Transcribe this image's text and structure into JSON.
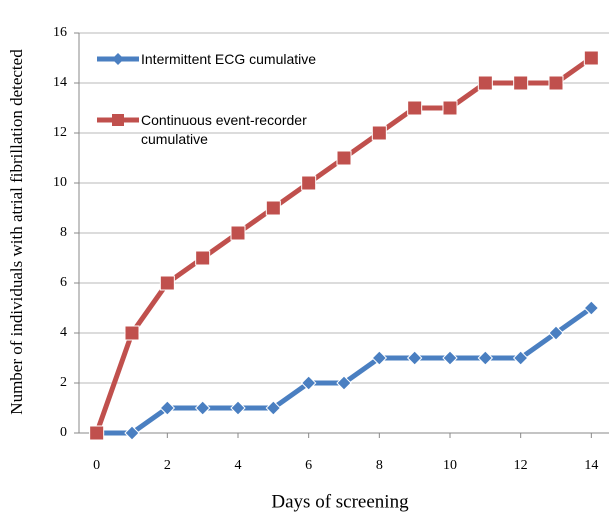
{
  "chart_data": {
    "type": "line",
    "x_label": "Days of screening",
    "y_label": "Number of individuals with atrial fibrillation detected",
    "x": [
      0,
      1,
      2,
      3,
      4,
      5,
      6,
      7,
      8,
      9,
      10,
      11,
      12,
      13,
      14
    ],
    "series": [
      {
        "name": "Intermittent ECG cumulative",
        "color": "#4a7fc1",
        "marker": "diamond",
        "values": [
          0,
          0,
          1,
          1,
          1,
          1,
          2,
          2,
          3,
          3,
          3,
          3,
          3,
          4,
          5
        ]
      },
      {
        "name": "Continuous event-recorder cumulative",
        "color": "#c0504d",
        "marker": "square",
        "values": [
          0,
          4,
          6,
          7,
          8,
          9,
          10,
          11,
          12,
          13,
          13,
          14,
          14,
          14,
          15
        ]
      }
    ],
    "xlim": [
      -0.5,
      14.5
    ],
    "xticks": [
      0,
      2,
      4,
      6,
      8,
      10,
      12,
      14
    ],
    "ylim": [
      0,
      16
    ],
    "yticks": [
      0,
      2,
      4,
      6,
      8,
      10,
      12,
      14,
      16
    ],
    "grid": true
  }
}
